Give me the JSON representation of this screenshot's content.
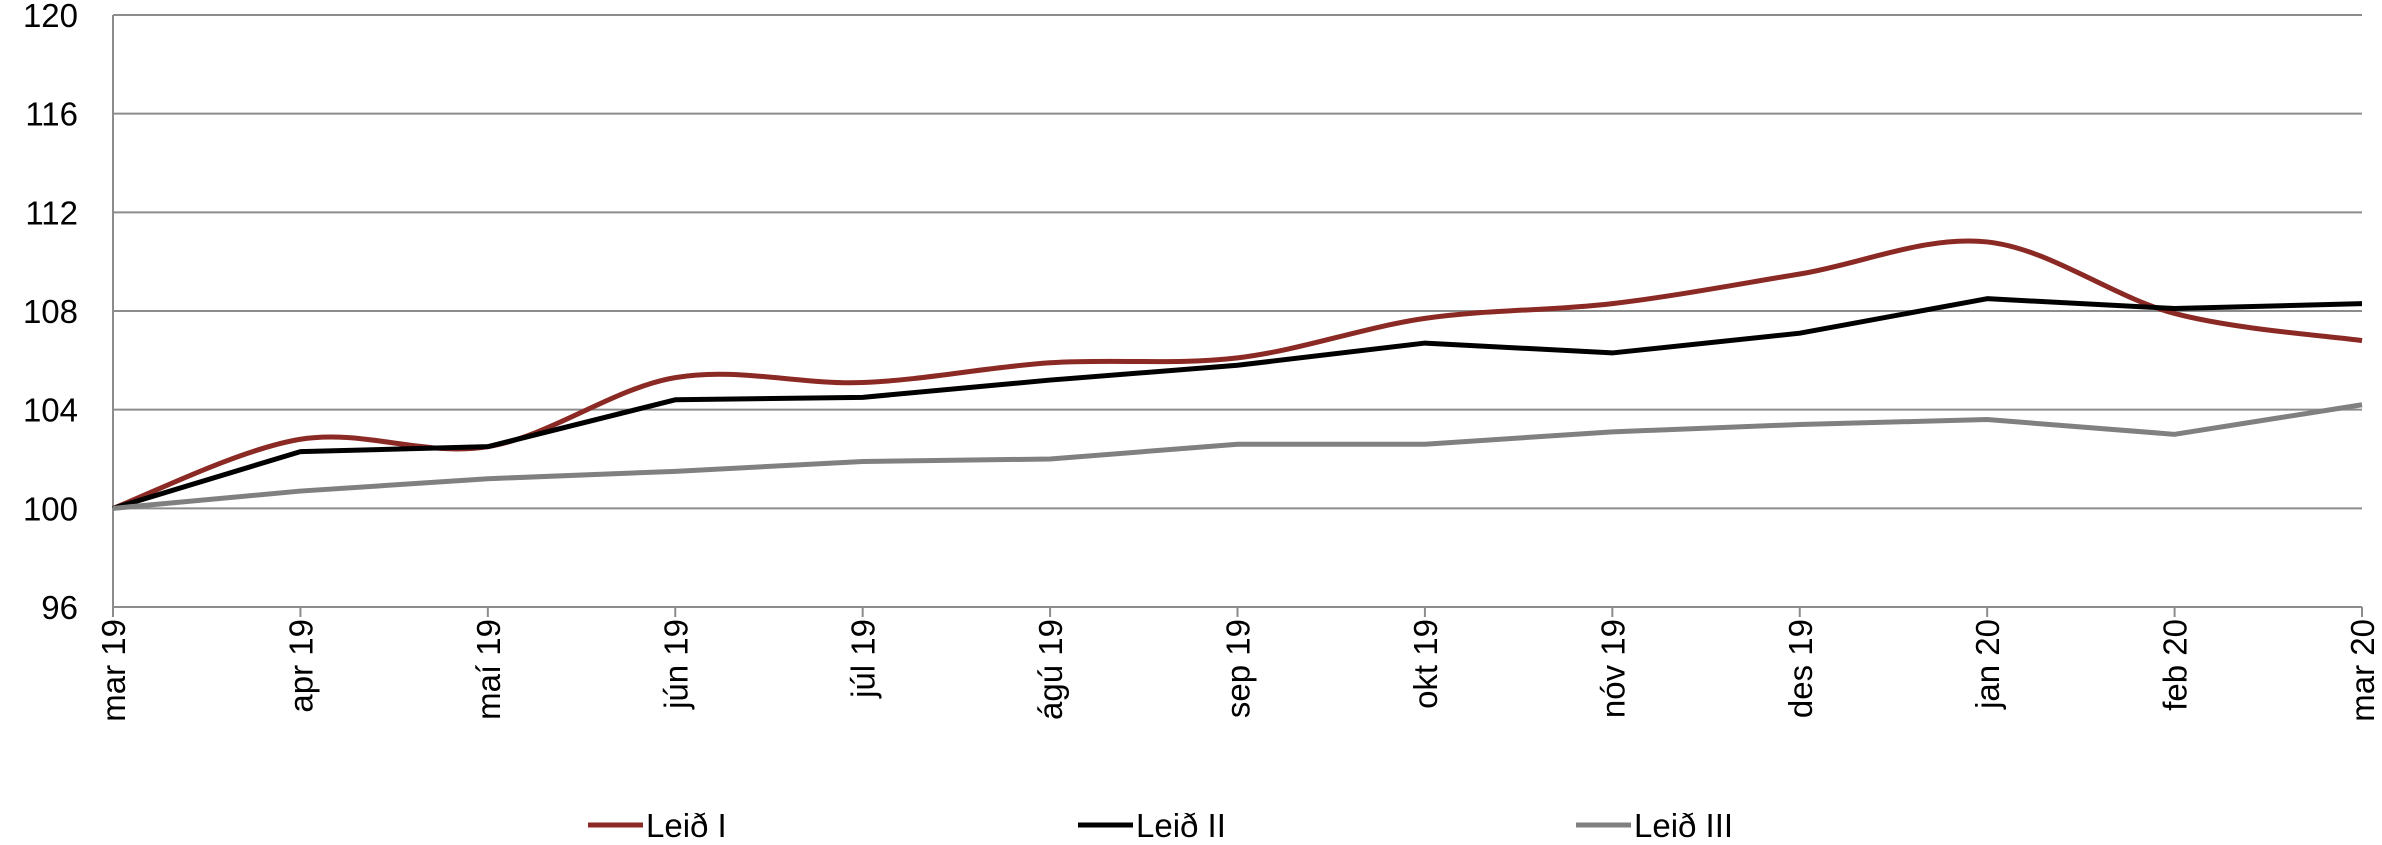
{
  "chart_data": {
    "type": "line",
    "x": [
      "mar 19",
      "apr 19",
      "maí 19",
      "jún 19",
      "júl 19",
      "ágú 19",
      "sep 19",
      "okt 19",
      "nóv 19",
      "des 19",
      "jan 20",
      "feb 20",
      "mar 20"
    ],
    "ylim": [
      96,
      120
    ],
    "yticks": [
      "96",
      "100",
      "104",
      "108",
      "112",
      "116",
      "120"
    ],
    "grid": true,
    "legend_position": "bottom",
    "series": [
      {
        "name": "Leið I",
        "color": "#8b2a24",
        "values": [
          100,
          102.8,
          102.5,
          105.3,
          105.1,
          105.9,
          106.1,
          107.7,
          108.3,
          109.5,
          110.8,
          107.9,
          106.8
        ]
      },
      {
        "name": "Leið II",
        "color": "#000000",
        "values": [
          100,
          102.3,
          102.5,
          104.4,
          104.5,
          105.2,
          105.8,
          106.7,
          106.3,
          107.1,
          108.5,
          108.1,
          108.3
        ]
      },
      {
        "name": "Leið III",
        "color": "#808080",
        "values": [
          100,
          100.7,
          101.2,
          101.5,
          101.9,
          102.0,
          102.6,
          102.6,
          103.1,
          103.4,
          103.6,
          103.0,
          104.2
        ]
      }
    ]
  }
}
